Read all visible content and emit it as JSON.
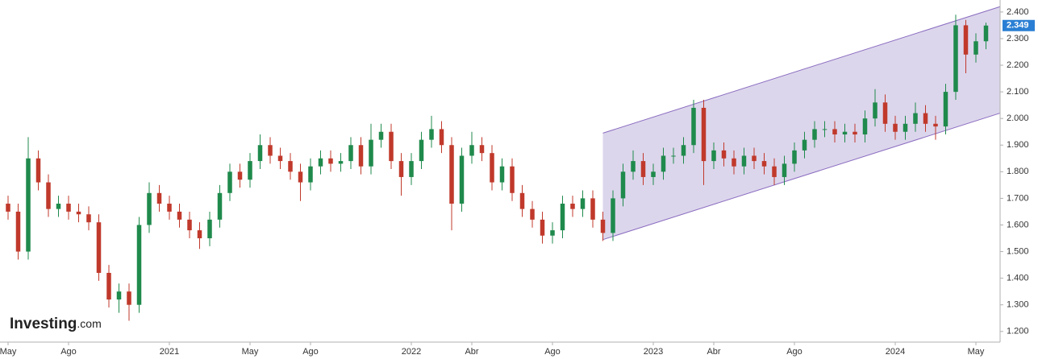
{
  "chart_data": {
    "type": "candlestick",
    "categories": [
      "May",
      null,
      null,
      null,
      null,
      null,
      "Ago",
      null,
      null,
      null,
      null,
      null,
      null,
      null,
      null,
      null,
      "2021",
      null,
      null,
      null,
      null,
      null,
      null,
      null,
      "May",
      null,
      null,
      null,
      null,
      null,
      "Ago",
      null,
      null,
      null,
      null,
      null,
      null,
      null,
      null,
      null,
      "2022",
      null,
      null,
      null,
      null,
      null,
      "Abr",
      null,
      null,
      null,
      null,
      null,
      null,
      null,
      "Ago",
      null,
      null,
      null,
      null,
      null,
      null,
      null,
      null,
      null,
      "2023",
      null,
      null,
      null,
      null,
      null,
      "Abr",
      null,
      null,
      null,
      null,
      null,
      null,
      null,
      "Ago",
      null,
      null,
      null,
      null,
      null,
      null,
      null,
      null,
      null,
      "2024",
      null,
      null,
      null,
      null,
      null,
      null,
      null,
      "May",
      null
    ],
    "open": [
      1.68,
      1.65,
      1.5,
      1.85,
      1.76,
      1.66,
      1.68,
      1.65,
      1.64,
      1.61,
      1.42,
      1.32,
      1.35,
      1.3,
      1.6,
      1.72,
      1.68,
      1.65,
      1.62,
      1.58,
      1.55,
      1.62,
      1.72,
      1.8,
      1.77,
      1.84,
      1.9,
      1.86,
      1.84,
      1.8,
      1.76,
      1.82,
      1.85,
      1.83,
      1.84,
      1.9,
      1.82,
      1.92,
      1.95,
      1.84,
      1.78,
      1.84,
      1.92,
      1.96,
      1.9,
      1.68,
      1.86,
      1.9,
      1.87,
      1.76,
      1.82,
      1.72,
      1.66,
      1.62,
      1.56,
      1.58,
      1.68,
      1.66,
      1.7,
      1.62,
      1.57,
      1.7,
      1.8,
      1.84,
      1.78,
      1.8,
      1.86,
      1.86,
      1.9,
      2.04,
      1.84,
      1.88,
      1.85,
      1.82,
      1.86,
      1.84,
      1.82,
      1.78,
      1.83,
      1.88,
      1.92,
      1.96,
      1.96,
      1.94,
      1.95,
      1.94,
      2.0,
      2.06,
      1.98,
      1.95,
      1.98,
      2.02,
      1.98,
      1.97,
      2.1,
      2.35,
      2.24,
      2.29
    ],
    "high": [
      1.71,
      1.68,
      1.93,
      1.88,
      1.79,
      1.71,
      1.71,
      1.68,
      1.67,
      1.64,
      1.45,
      1.38,
      1.38,
      1.63,
      1.76,
      1.75,
      1.71,
      1.68,
      1.65,
      1.61,
      1.65,
      1.75,
      1.83,
      1.83,
      1.87,
      1.94,
      1.93,
      1.89,
      1.87,
      1.83,
      1.85,
      1.88,
      1.88,
      1.87,
      1.93,
      1.93,
      1.98,
      1.98,
      1.98,
      1.87,
      1.87,
      1.95,
      2.01,
      1.99,
      1.93,
      1.89,
      1.95,
      1.93,
      1.9,
      1.85,
      1.85,
      1.75,
      1.69,
      1.65,
      1.61,
      1.71,
      1.71,
      1.73,
      1.73,
      1.65,
      1.73,
      1.83,
      1.88,
      1.87,
      1.83,
      1.89,
      1.89,
      1.93,
      2.07,
      2.07,
      1.91,
      1.91,
      1.88,
      1.89,
      1.89,
      1.87,
      1.85,
      1.86,
      1.91,
      1.95,
      1.99,
      1.99,
      1.99,
      1.98,
      1.98,
      2.03,
      2.11,
      2.09,
      2.01,
      2.01,
      2.06,
      2.05,
      2.01,
      2.13,
      2.39,
      2.37,
      2.32,
      2.36
    ],
    "low": [
      1.62,
      1.47,
      1.47,
      1.73,
      1.63,
      1.63,
      1.62,
      1.61,
      1.58,
      1.39,
      1.29,
      1.27,
      1.24,
      1.27,
      1.57,
      1.65,
      1.62,
      1.59,
      1.55,
      1.51,
      1.52,
      1.59,
      1.69,
      1.74,
      1.74,
      1.81,
      1.83,
      1.81,
      1.77,
      1.69,
      1.73,
      1.79,
      1.8,
      1.8,
      1.81,
      1.79,
      1.79,
      1.89,
      1.81,
      1.71,
      1.75,
      1.81,
      1.89,
      1.87,
      1.58,
      1.65,
      1.83,
      1.84,
      1.73,
      1.73,
      1.69,
      1.63,
      1.59,
      1.53,
      1.53,
      1.55,
      1.63,
      1.63,
      1.59,
      1.54,
      1.54,
      1.67,
      1.77,
      1.75,
      1.75,
      1.77,
      1.83,
      1.83,
      1.87,
      1.75,
      1.81,
      1.82,
      1.79,
      1.79,
      1.81,
      1.79,
      1.75,
      1.75,
      1.8,
      1.85,
      1.89,
      1.93,
      1.91,
      1.91,
      1.91,
      1.91,
      1.97,
      1.95,
      1.92,
      1.92,
      1.95,
      1.95,
      1.92,
      1.94,
      2.07,
      2.17,
      2.21,
      2.26
    ],
    "close": [
      1.65,
      1.5,
      1.85,
      1.76,
      1.66,
      1.68,
      1.65,
      1.64,
      1.61,
      1.42,
      1.32,
      1.35,
      1.3,
      1.6,
      1.72,
      1.68,
      1.65,
      1.62,
      1.58,
      1.55,
      1.62,
      1.72,
      1.8,
      1.77,
      1.84,
      1.9,
      1.86,
      1.84,
      1.8,
      1.76,
      1.82,
      1.85,
      1.83,
      1.84,
      1.9,
      1.82,
      1.92,
      1.95,
      1.84,
      1.78,
      1.84,
      1.92,
      1.96,
      1.9,
      1.68,
      1.86,
      1.9,
      1.87,
      1.76,
      1.82,
      1.72,
      1.66,
      1.62,
      1.56,
      1.58,
      1.68,
      1.66,
      1.7,
      1.62,
      1.57,
      1.7,
      1.8,
      1.84,
      1.78,
      1.8,
      1.86,
      1.86,
      1.9,
      2.04,
      1.84,
      1.88,
      1.85,
      1.82,
      1.86,
      1.84,
      1.82,
      1.78,
      1.83,
      1.88,
      1.92,
      1.96,
      1.96,
      1.94,
      1.95,
      1.94,
      2.0,
      2.06,
      1.98,
      1.95,
      1.98,
      2.02,
      1.98,
      1.97,
      2.1,
      2.35,
      2.24,
      2.29,
      2.349
    ],
    "up_color": "#1f8a4c",
    "down_color": "#c0392b",
    "last_color": "#2a7fd4",
    "xlim": [
      -0.8,
      98.4
    ],
    "ylim": [
      1.16,
      2.445
    ],
    "yticks": [
      {
        "value": 1.2,
        "label": "1.200"
      },
      {
        "value": 1.3,
        "label": "1.300"
      },
      {
        "value": 1.4,
        "label": "1.400"
      },
      {
        "value": 1.5,
        "label": "1.500"
      },
      {
        "value": 1.6,
        "label": "1.600"
      },
      {
        "value": 1.7,
        "label": "1.700"
      },
      {
        "value": 1.8,
        "label": "1.800"
      },
      {
        "value": 1.9,
        "label": "1.900"
      },
      {
        "value": 2.0,
        "label": "2.000"
      },
      {
        "value": 2.1,
        "label": "2.100"
      },
      {
        "value": 2.2,
        "label": "2.200"
      },
      {
        "value": 2.3,
        "label": "2.300"
      },
      {
        "value": 2.4,
        "label": "2.400"
      }
    ],
    "channel": {
      "x": [
        59,
        98.4
      ],
      "upper": [
        1.945,
        2.42
      ],
      "lower": [
        1.545,
        2.02
      ],
      "fill": "#d8d2ea",
      "stroke": "#8a6cc0"
    },
    "logo": [
      "Investing",
      ".com"
    ]
  }
}
